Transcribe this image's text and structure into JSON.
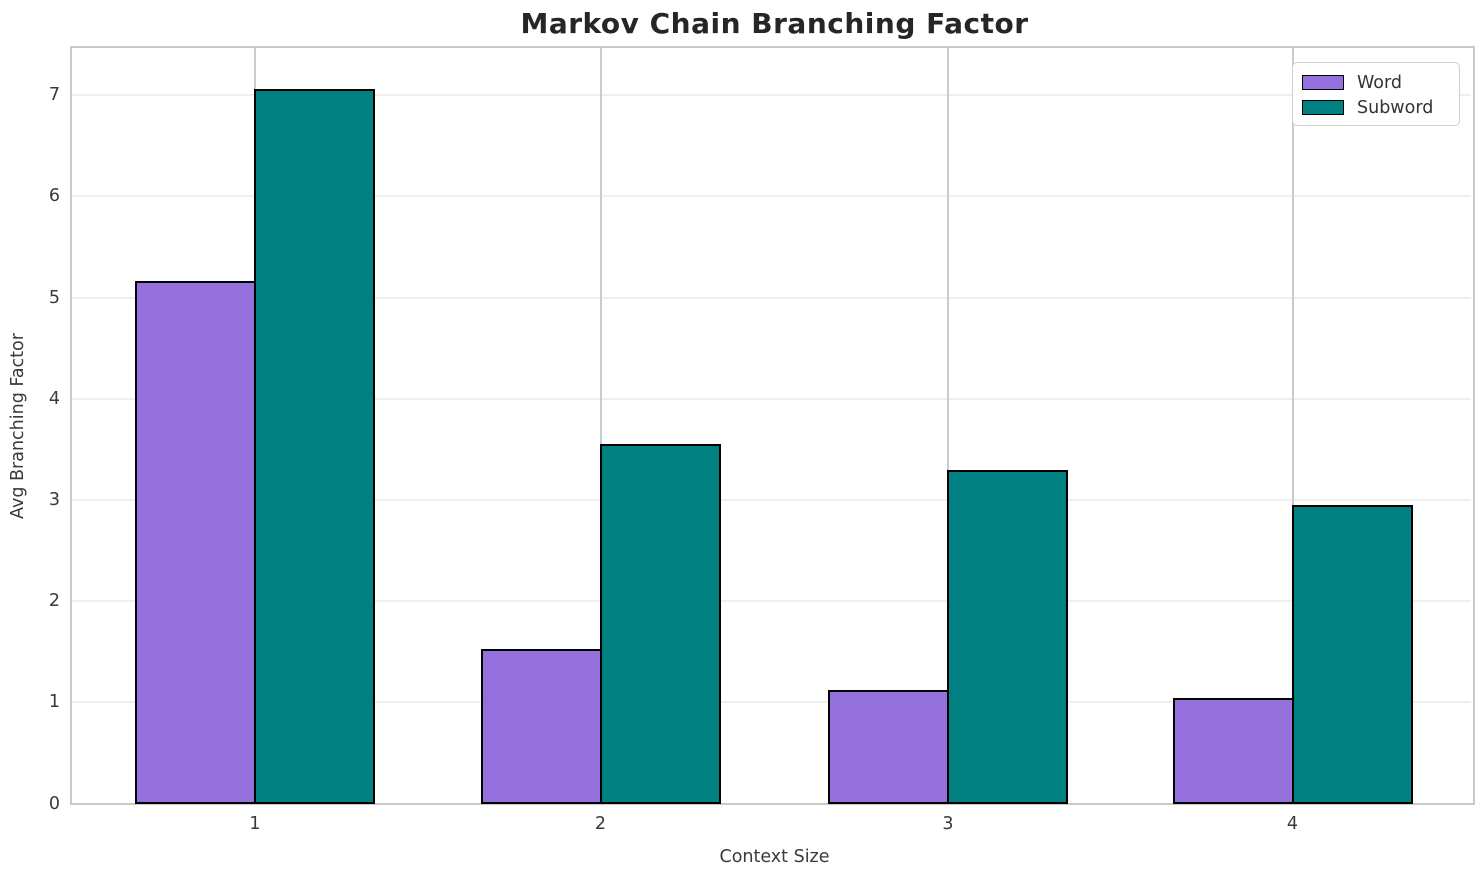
{
  "chart_data": {
    "type": "bar",
    "title": "Markov Chain Branching Factor",
    "xlabel": "Context Size",
    "ylabel": "Avg Branching Factor",
    "categories": [
      "1",
      "2",
      "3",
      "4"
    ],
    "series": [
      {
        "name": "Word",
        "values": [
          5.16,
          1.53,
          1.12,
          1.04
        ],
        "color": "#9370DB"
      },
      {
        "name": "Subword",
        "values": [
          7.06,
          3.55,
          3.3,
          2.95
        ],
        "color": "#008080"
      }
    ],
    "ylim": [
      0,
      7.52
    ],
    "yticks": [
      0,
      1,
      2,
      3,
      4,
      5,
      6,
      7
    ],
    "grid": true,
    "legend_position": "upper right",
    "bar_edge_color": "#000000",
    "bar_width_fraction": 0.35
  }
}
